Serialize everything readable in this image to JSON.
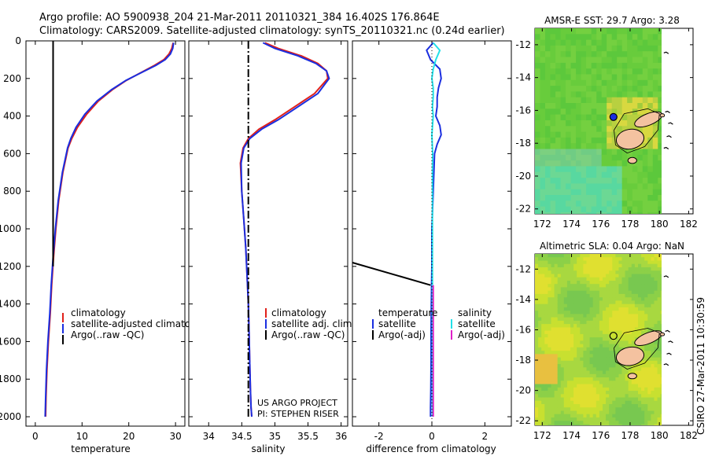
{
  "header": {
    "line1": "Argo profile: AO 5900938_204 21-Mar-2011 20110321_384 16.402S 176.864E",
    "line2": "Climatology: CARS2009. Satellite-adjusted climatology: synTS_20110321.nc (0.24d earlier)"
  },
  "side_label": "CSIRO 27-Mar-2011 10:30:59",
  "project": {
    "line1": "US ARGO PROJECT",
    "line2": "PI: STEPHEN RISER"
  },
  "colors": {
    "climatology": "#e0201a",
    "satellite": "#1a2ee0",
    "argo": "#000000",
    "diff_satellite_salinity": "#22e0e8",
    "diff_argo_salinity": "#e020c8",
    "land": "#f4c2a0"
  },
  "chart_data": [
    {
      "type": "line",
      "id": "temperature",
      "xlabel": "temperature",
      "ylabel": "",
      "xlim": [
        -2,
        32
      ],
      "ylim": [
        2050,
        0
      ],
      "xticks": [
        0,
        10,
        20,
        30
      ],
      "yticks": [
        0,
        200,
        400,
        600,
        800,
        1000,
        1200,
        1400,
        1600,
        1800,
        2000
      ],
      "legend": [
        "climatology",
        "satellite-adjusted climatology",
        "Argo(..raw -QC)"
      ],
      "series": [
        {
          "name": "climatology",
          "color": "#e0201a",
          "x": [
            29.5,
            29.2,
            28.6,
            27.5,
            25.5,
            22.5,
            19.5,
            16.5,
            13.5,
            11.0,
            9.0,
            7.8,
            7.0,
            5.9,
            5.0,
            4.4,
            3.9,
            3.5,
            3.2,
            2.8,
            2.5,
            2.3,
            2.2
          ],
          "y": [
            10,
            40,
            70,
            100,
            130,
            170,
            210,
            260,
            320,
            390,
            460,
            520,
            570,
            700,
            850,
            1000,
            1150,
            1300,
            1450,
            1600,
            1750,
            1900,
            2000
          ]
        },
        {
          "name": "satellite-adjusted climatology",
          "color": "#1a2ee0",
          "x": [
            29.6,
            29.4,
            28.9,
            27.8,
            25.8,
            22.6,
            19.4,
            16.3,
            13.2,
            10.6,
            8.7,
            7.6,
            6.9,
            5.8,
            4.9,
            4.3,
            3.8,
            3.4,
            3.1,
            2.7,
            2.4,
            2.2,
            2.1
          ],
          "y": [
            10,
            40,
            70,
            100,
            130,
            170,
            210,
            260,
            320,
            390,
            460,
            520,
            570,
            700,
            850,
            1000,
            1150,
            1300,
            1450,
            1600,
            1750,
            1900,
            2000
          ]
        },
        {
          "name": "Argo(..raw -QC)",
          "color": "#000000",
          "x": [
            3.8,
            3.8
          ],
          "y": [
            0,
            1200
          ]
        }
      ]
    },
    {
      "type": "line",
      "id": "salinity",
      "xlabel": "salinity",
      "xlim": [
        33.7,
        36.1
      ],
      "ylim": [
        2050,
        0
      ],
      "xticks": [
        34,
        34.5,
        35,
        35.5,
        36
      ],
      "legend": [
        "climatology",
        "satellite adj. clim.",
        "Argo(..raw -QC)"
      ],
      "series": [
        {
          "name": "climatology",
          "color": "#e0201a",
          "x": [
            34.85,
            35.05,
            35.4,
            35.65,
            35.78,
            35.8,
            35.6,
            35.3,
            35.0,
            34.76,
            34.6,
            34.52,
            34.48,
            34.5,
            34.53,
            34.56,
            34.58,
            34.6,
            34.61,
            34.62,
            34.63,
            34.64,
            34.65
          ],
          "y": [
            10,
            40,
            80,
            120,
            160,
            200,
            280,
            350,
            420,
            470,
            520,
            570,
            650,
            800,
            950,
            1100,
            1250,
            1400,
            1550,
            1700,
            1850,
            1950,
            2000
          ]
        },
        {
          "name": "satellite adj. clim.",
          "color": "#1a2ee0",
          "x": [
            34.82,
            35.0,
            35.35,
            35.62,
            35.78,
            35.82,
            35.65,
            35.35,
            35.05,
            34.8,
            34.62,
            34.53,
            34.49,
            34.5,
            34.53,
            34.56,
            34.58,
            34.6,
            34.61,
            34.62,
            34.63,
            34.64,
            34.65
          ],
          "y": [
            10,
            40,
            80,
            120,
            160,
            200,
            280,
            350,
            420,
            470,
            520,
            570,
            650,
            800,
            950,
            1100,
            1250,
            1400,
            1550,
            1700,
            1850,
            1950,
            2000
          ]
        },
        {
          "name": "Argo(..raw -QC)",
          "color": "#000000",
          "x": [
            34.6,
            34.6
          ],
          "y": [
            0,
            2000
          ]
        }
      ]
    },
    {
      "type": "line",
      "id": "difference",
      "xlabel": "difference from climatology",
      "xlim": [
        -3,
        3
      ],
      "ylim": [
        2050,
        0
      ],
      "xticks": [
        -2,
        0,
        2
      ],
      "legend_temperature": {
        "title": "temperature",
        "items": [
          "satellite",
          "Argo(-adj)"
        ]
      },
      "legend_salinity": {
        "title": "salinity",
        "items": [
          "satellite",
          "Argo(-adj)"
        ]
      },
      "series": [
        {
          "name": "temperature satellite",
          "color": "#1a2ee0",
          "x": [
            0.05,
            -0.2,
            -0.05,
            0.3,
            0.35,
            0.25,
            0.2,
            0.2,
            0.15,
            0.3,
            0.35,
            0.2,
            0.1,
            0.05,
            0.0,
            0.0,
            -0.02,
            -0.03,
            -0.03,
            -0.04,
            -0.05,
            -0.05
          ],
          "y": [
            10,
            50,
            100,
            150,
            200,
            250,
            300,
            350,
            400,
            450,
            500,
            550,
            600,
            800,
            1000,
            1200,
            1400,
            1550,
            1700,
            1850,
            1950,
            2000
          ]
        },
        {
          "name": "salinity satellite",
          "color": "#22e0e8",
          "x": [
            0.05,
            0.3,
            0.15,
            0.05,
            0.0,
            0.05,
            0.05,
            0.02,
            0.05,
            0.0,
            0.03,
            0.02,
            0.02,
            0.02,
            0.02,
            0.02,
            0.02,
            0.02,
            0.02,
            0.02,
            0.02
          ],
          "y": [
            10,
            50,
            100,
            150,
            200,
            250,
            300,
            350,
            400,
            500,
            600,
            700,
            800,
            1000,
            1200,
            1400,
            1550,
            1700,
            1850,
            1950,
            2000
          ]
        },
        {
          "name": "temperature Argo(-adj)",
          "color": "#000000",
          "x": [
            -3,
            -0.05
          ],
          "y": [
            1180,
            1300
          ]
        },
        {
          "name": "salinity Argo(-adj)",
          "color": "#e020c8",
          "x": [
            0.05,
            0.05
          ],
          "y": [
            1300,
            2000
          ]
        }
      ]
    },
    {
      "type": "heatmap",
      "id": "sst_map",
      "title": "AMSR-E SST: 29.7 Argo: 3.28",
      "xlim": [
        171.5,
        182.3
      ],
      "ylim": [
        -22.3,
        -11
      ],
      "xticks": [
        172,
        174,
        176,
        178,
        180,
        182
      ],
      "yticks": [
        -12,
        -14,
        -16,
        -18,
        -20,
        -22
      ],
      "argo_position": [
        176.864,
        -16.402
      ]
    },
    {
      "type": "heatmap",
      "id": "sla_map",
      "title": "Altimetric SLA: 0.04 Argo: NaN",
      "xlim": [
        171.5,
        182.3
      ],
      "ylim": [
        -22.3,
        -11
      ],
      "xticks": [
        172,
        174,
        176,
        178,
        180,
        182
      ],
      "yticks": [
        -12,
        -14,
        -16,
        -18,
        -20,
        -22
      ],
      "argo_position": [
        176.864,
        -16.402
      ]
    }
  ]
}
